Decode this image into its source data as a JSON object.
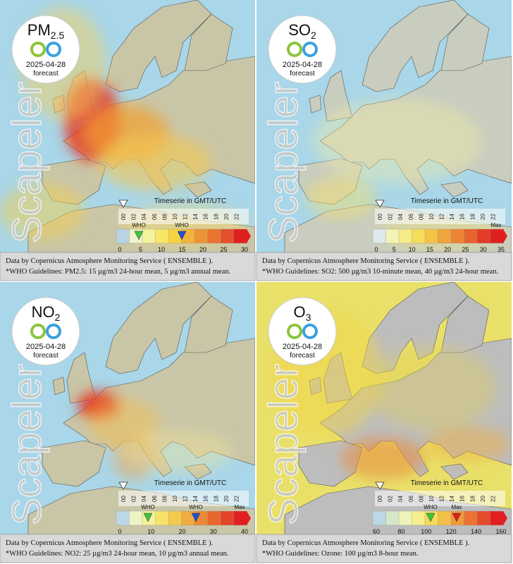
{
  "panels": [
    {
      "pollutant": {
        "main": "PM",
        "sub": "2.5"
      },
      "date": "2025-04-28",
      "status": "forecast",
      "brand": "Scapeler",
      "timeserie": "Timeserie in GMT/UTC",
      "hours": [
        "00",
        "02",
        "04",
        "06",
        "08",
        "10",
        "12",
        "14",
        "16",
        "18",
        "20",
        "22"
      ],
      "scale": [
        "0",
        "5",
        "10",
        "15",
        "20",
        "25",
        "30"
      ],
      "legend_marks": [
        "WHO",
        "WHO"
      ],
      "footer": [
        "Data by Copernicus Atmosphere Monitoring Service ( ENSEMBLE ).",
        "*WHO Guidelines: PM2.5: 15 µg/m3 24-hour mean, 5 µg/m3 annual mean."
      ]
    },
    {
      "pollutant": {
        "main": "SO",
        "sub": "2"
      },
      "date": "2025-04-28",
      "status": "forecast",
      "brand": "Scapeler",
      "timeserie": "Timeserie in GMT/UTC",
      "hours": [
        "00",
        "02",
        "04",
        "06",
        "08",
        "10",
        "12",
        "14",
        "16",
        "18",
        "20",
        "22"
      ],
      "scale": [
        "0",
        "5",
        "10",
        "15",
        "20",
        "25",
        "30",
        "35"
      ],
      "legend_marks": [
        "Max"
      ],
      "footer": [
        "Data by Copernicus Atmosphere Monitoring Service ( ENSEMBLE ).",
        "*WHO Guidelines: SO2: 500 µg/m3 10-minute mean, 40 µg/m3 24-hour mean."
      ]
    },
    {
      "pollutant": {
        "main": "NO",
        "sub": "2"
      },
      "date": "2025-04-28",
      "status": "forecast",
      "brand": "Scapeler",
      "timeserie": "Timeserie in GMT/UTC",
      "hours": [
        "00",
        "02",
        "04",
        "06",
        "08",
        "10",
        "12",
        "14",
        "16",
        "18",
        "20",
        "22"
      ],
      "scale": [
        "0",
        "10",
        "20",
        "30",
        "40"
      ],
      "legend_marks": [
        "WHO",
        "WHO",
        "Max"
      ],
      "footer": [
        "Data by Copernicus Atmosphere Monitoring Service ( ENSEMBLE ).",
        "*WHO Guidelines: NO2: 25 µg/m3 24-hour mean, 10 µg/m3 annual mean."
      ]
    },
    {
      "pollutant": {
        "main": "O",
        "sub": "3"
      },
      "date": "2025-04-28",
      "status": "forecast",
      "brand": "Scapeler",
      "timeserie": "Timeserie in GMT/UTC",
      "hours": [
        "00",
        "02",
        "04",
        "06",
        "08",
        "10",
        "12",
        "14",
        "16",
        "18",
        "20",
        "22"
      ],
      "scale": [
        "60",
        "80",
        "100",
        "120",
        "140",
        "160"
      ],
      "legend_marks": [
        "WHO",
        "Max"
      ],
      "footer": [
        "Data by Copernicus Atmosphere Monitoring Service ( ENSEMBLE ).",
        "*WHO Guidelines: Ozone: 100 µg/m3 8-hour mean."
      ]
    }
  ]
}
